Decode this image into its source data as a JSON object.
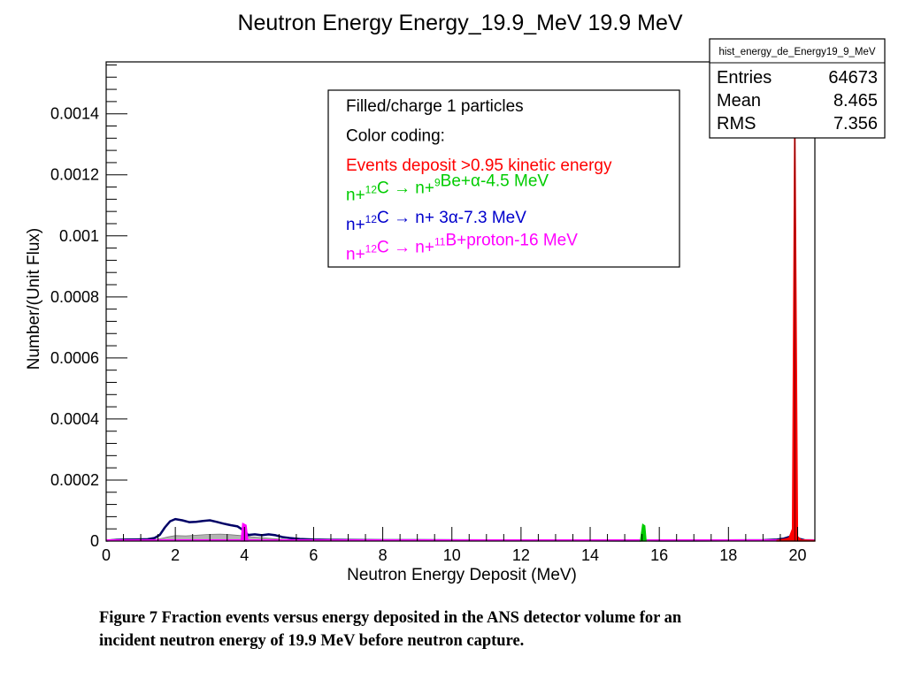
{
  "chart_data": {
    "type": "histogram",
    "title": "Neutron Energy Energy_19.9_MeV 19.9 MeV",
    "xlabel": "Neutron Energy Deposit (MeV)",
    "ylabel": "Number/(Unit Flux)",
    "xlim": [
      0,
      20.5
    ],
    "ylim": [
      0,
      0.00157
    ],
    "x_ticks": [
      "0",
      "2",
      "4",
      "6",
      "8",
      "10",
      "12",
      "14",
      "16",
      "18",
      "20"
    ],
    "y_ticks": [
      "0",
      "0.0002",
      "0.0004",
      "0.0006",
      "0.0008",
      "0.001",
      "0.0012",
      "0.0014"
    ],
    "stats": {
      "name": "hist_energy_de_Energy19_9_MeV",
      "rows": [
        {
          "label": "Entries",
          "value": "64673"
        },
        {
          "label": "Mean",
          "value": "8.465"
        },
        {
          "label": "RMS",
          "value": "7.356"
        }
      ]
    },
    "legend": {
      "lines": [
        {
          "color": "#000000",
          "parts": [
            {
              "t": "Filled/charge 1 particles"
            }
          ]
        },
        {
          "color": "#000000",
          "parts": [
            {
              "t": "Color coding:"
            }
          ]
        },
        {
          "color": "#ff0000",
          "parts": [
            {
              "t": "Events deposit >0.95 kinetic energy"
            }
          ]
        },
        {
          "color": "#00cc00",
          "parts": [
            {
              "t": "n+"
            },
            {
              "t": "12",
              "sup": true
            },
            {
              "t": "C → n+"
            },
            {
              "t": "9",
              "sup": true
            },
            {
              "t": "Be+α-4.5 MeV"
            }
          ]
        },
        {
          "color": "#0000cc",
          "parts": [
            {
              "t": "n+"
            },
            {
              "t": "12",
              "sup": true
            },
            {
              "t": "C → n+ 3α-7.3 MeV"
            }
          ]
        },
        {
          "color": "#ff00ff",
          "parts": [
            {
              "t": "n+"
            },
            {
              "t": "12",
              "sup": true
            },
            {
              "t": "C → n+"
            },
            {
              "t": "11",
              "sup": true
            },
            {
              "t": "B+proton-16 MeV"
            }
          ]
        }
      ]
    },
    "series": [
      {
        "name": "Filled/charge 1 particles",
        "color": "#000066",
        "points": [
          [
            0,
            1.5e-06
          ],
          [
            0.3,
            4e-06
          ],
          [
            0.6,
            5e-06
          ],
          [
            0.9,
            5.5e-06
          ],
          [
            1.2,
            6e-06
          ],
          [
            1.4,
            1e-05
          ],
          [
            1.55,
            2e-05
          ],
          [
            1.7,
            4.5e-05
          ],
          [
            1.85,
            6.5e-05
          ],
          [
            2.0,
            7.2e-05
          ],
          [
            2.2,
            6.8e-05
          ],
          [
            2.4,
            6.2e-05
          ],
          [
            2.6,
            6.3e-05
          ],
          [
            2.8,
            6.6e-05
          ],
          [
            3.0,
            6.8e-05
          ],
          [
            3.2,
            6.3e-05
          ],
          [
            3.4,
            5.7e-05
          ],
          [
            3.6,
            5.2e-05
          ],
          [
            3.8,
            4.8e-05
          ],
          [
            4.0,
            3.3e-05
          ],
          [
            4.1,
            2e-05
          ],
          [
            4.3,
            2.2e-05
          ],
          [
            4.5,
            1.9e-05
          ],
          [
            4.7,
            2.2e-05
          ],
          [
            4.9,
            1.9e-05
          ],
          [
            5.1,
            1.3e-05
          ],
          [
            5.3,
            1e-05
          ],
          [
            5.6,
            7e-06
          ],
          [
            6.0,
            5e-06
          ],
          [
            6.5,
            4e-06
          ],
          [
            7.0,
            3.5e-06
          ],
          [
            8.0,
            3e-06
          ],
          [
            9.0,
            2.8e-06
          ],
          [
            10.0,
            2.5e-06
          ],
          [
            11.0,
            2.4e-06
          ],
          [
            12.0,
            2.2e-06
          ],
          [
            13.0,
            2e-06
          ],
          [
            14.0,
            2e-06
          ],
          [
            15.0,
            1.8e-06
          ],
          [
            15.45,
            1.8e-06
          ],
          [
            15.55,
            4e-06
          ],
          [
            15.65,
            2e-06
          ],
          [
            16.0,
            1.8e-06
          ],
          [
            17.0,
            1.8e-06
          ],
          [
            18.0,
            2e-06
          ],
          [
            19.0,
            3e-06
          ],
          [
            19.4,
            5e-06
          ],
          [
            19.6,
            8e-06
          ],
          [
            19.8,
            1.5e-05
          ],
          [
            20.2,
            3e-06
          ],
          [
            20.5,
            2e-06
          ]
        ]
      },
      {
        "name": "shaded",
        "color": "#999999",
        "points": [
          [
            0,
            1e-06
          ],
          [
            1.0,
            3e-06
          ],
          [
            1.5,
            6e-06
          ],
          [
            1.8,
            1.4e-05
          ],
          [
            2.0,
            1.8e-05
          ],
          [
            2.3,
            1.7e-05
          ],
          [
            2.6,
            1.9e-05
          ],
          [
            3.0,
            2.2e-05
          ],
          [
            3.3,
            2.3e-05
          ],
          [
            3.6,
            2.1e-05
          ],
          [
            3.9,
            1.8e-05
          ],
          [
            4.2,
            1.4e-05
          ],
          [
            4.5,
            1.1e-05
          ],
          [
            4.8,
            8e-06
          ],
          [
            5.2,
            5e-06
          ],
          [
            5.6,
            3e-06
          ],
          [
            6.5,
            2e-06
          ],
          [
            8,
            1.5e-06
          ],
          [
            20.5,
            1e-06
          ]
        ]
      },
      {
        "name": "Events deposit >0.95 kinetic energy",
        "color": "#ff0000",
        "points": [
          [
            19.4,
            2e-06
          ],
          [
            19.6,
            6e-06
          ],
          [
            19.75,
            1e-05
          ],
          [
            19.85,
            4e-05
          ],
          [
            19.92,
            0.00148
          ],
          [
            20.0,
            1.5e-05
          ],
          [
            20.1,
            4e-06
          ],
          [
            20.5,
            2e-06
          ]
        ]
      },
      {
        "name": "n+12C → n+9Be+α-4.5 MeV",
        "color": "#00cc00",
        "points": [
          [
            15.45,
            0
          ],
          [
            15.52,
            5.5e-05
          ],
          [
            15.58,
            5e-05
          ],
          [
            15.62,
            0
          ]
        ]
      },
      {
        "name": "n+12C → n+11B+proton-16 MeV",
        "color": "#ff00ff",
        "points": [
          [
            3.9,
            0
          ],
          [
            3.95,
            5.8e-05
          ],
          [
            4.05,
            5.2e-05
          ],
          [
            4.1,
            0
          ]
        ]
      }
    ]
  },
  "caption": {
    "line1": "Figure 7 Fraction events versus energy deposited in the ANS detector volume for an",
    "line2": "incident neutron energy of 19.9 MeV before neutron capture."
  }
}
